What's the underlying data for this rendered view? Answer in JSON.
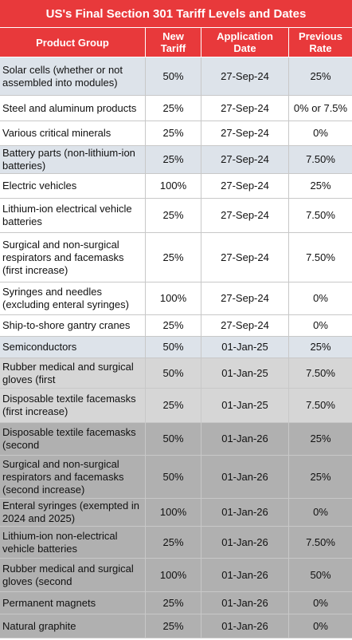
{
  "title": "US's Final Section 301 Tariff Levels and Dates",
  "table": {
    "header": [
      "Product Group",
      "New Tariff",
      "Application Date",
      "Previous Rate"
    ],
    "rows": [
      [
        "Solar cells (whether or not assembled into modules)",
        "50%",
        "27-Sep-24",
        "25%"
      ],
      [
        "Steel and aluminum products",
        "25%",
        "27-Sep-24",
        "0% or 7.5%"
      ],
      [
        "Various critical minerals",
        "25%",
        "27-Sep-24",
        "0%"
      ],
      [
        "Battery parts (non-lithium-ion batteries)",
        "25%",
        "27-Sep-24",
        "7.50%"
      ],
      [
        "Electric vehicles",
        "100%",
        "27-Sep-24",
        "25%"
      ],
      [
        "Lithium-ion electrical vehicle batteries",
        "25%",
        "27-Sep-24",
        "7.50%"
      ],
      [
        "Surgical and non-surgical respirators and facemasks (first increase)",
        "25%",
        "27-Sep-24",
        "7.50%"
      ],
      [
        "Syringes and needles (excluding enteral syringes)",
        "100%",
        "27-Sep-24",
        "0%"
      ],
      [
        "Ship-to-shore gantry cranes",
        "25%",
        "27-Sep-24",
        "0%"
      ],
      [
        "Semiconductors",
        "50%",
        "01-Jan-25",
        "25%"
      ],
      [
        "Rubber medical and surgical gloves (first",
        "50%",
        "01-Jan-25",
        "7.50%"
      ],
      [
        "Disposable textile facemasks (first increase)",
        "25%",
        "01-Jan-25",
        "7.50%"
      ],
      [
        "Disposable textile facemasks (second",
        "50%",
        "01-Jan-26",
        "25%"
      ],
      [
        "Surgical and non-surgical respirators and facemasks (second increase)",
        "50%",
        "01-Jan-26",
        "25%"
      ],
      [
        "Enteral syringes (exempted in 2024 and 2025)",
        "100%",
        "01-Jan-26",
        "0%"
      ],
      [
        "Lithium-ion non-electrical vehicle batteries",
        "25%",
        "01-Jan-26",
        "7.50%"
      ],
      [
        "Rubber medical and surgical gloves (second",
        "100%",
        "01-Jan-26",
        "50%"
      ],
      [
        "Permanent magnets",
        "25%",
        "01-Jan-26",
        "0%"
      ],
      [
        "Natural graphite",
        "25%",
        "01-Jan-26",
        "0%"
      ]
    ]
  }
}
